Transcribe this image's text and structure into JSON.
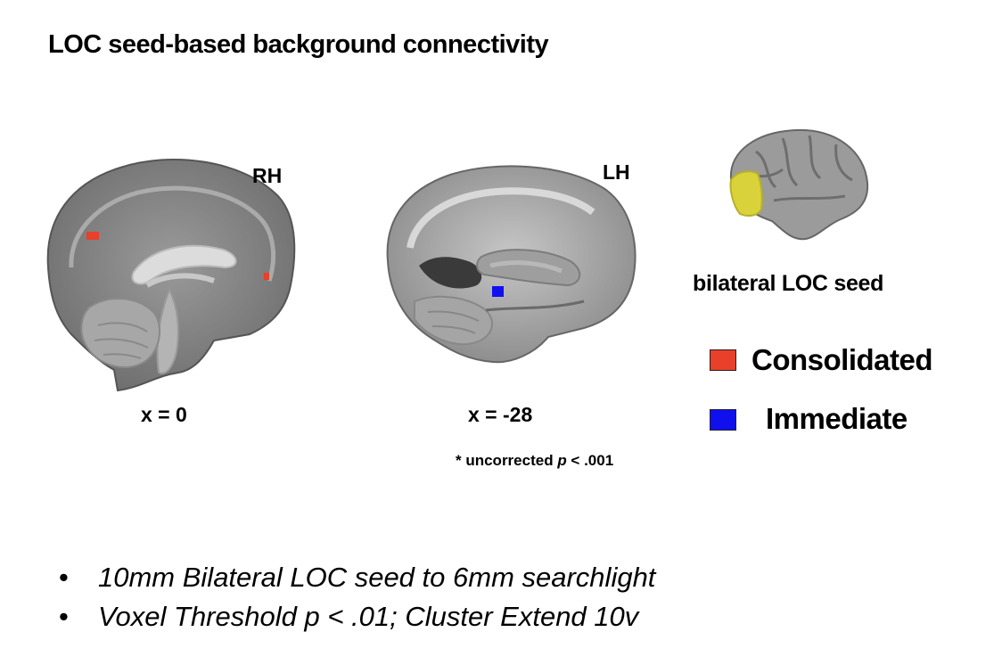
{
  "title": "LOC seed-based background connectivity",
  "panels": {
    "sagittal_medial": {
      "hemisphere": "RH",
      "coordinate": "x = 0"
    },
    "sagittal_lateral": {
      "hemisphere": "LH",
      "coordinate": "x = -28",
      "note_prefix": "* uncorrected ",
      "note_italic": "p",
      "note_suffix": " < .001"
    },
    "seed": {
      "label": "bilateral LOC seed",
      "color": "#d9d23a"
    }
  },
  "legend": [
    {
      "label": "Consolidated",
      "color": "#e8402a"
    },
    {
      "label": "Immediate",
      "color": "#1010ee"
    }
  ],
  "bullets": [
    "10mm Bilateral LOC seed to 6mm searchlight",
    "Voxel Threshold p < .01; Cluster Extend 10v"
  ]
}
